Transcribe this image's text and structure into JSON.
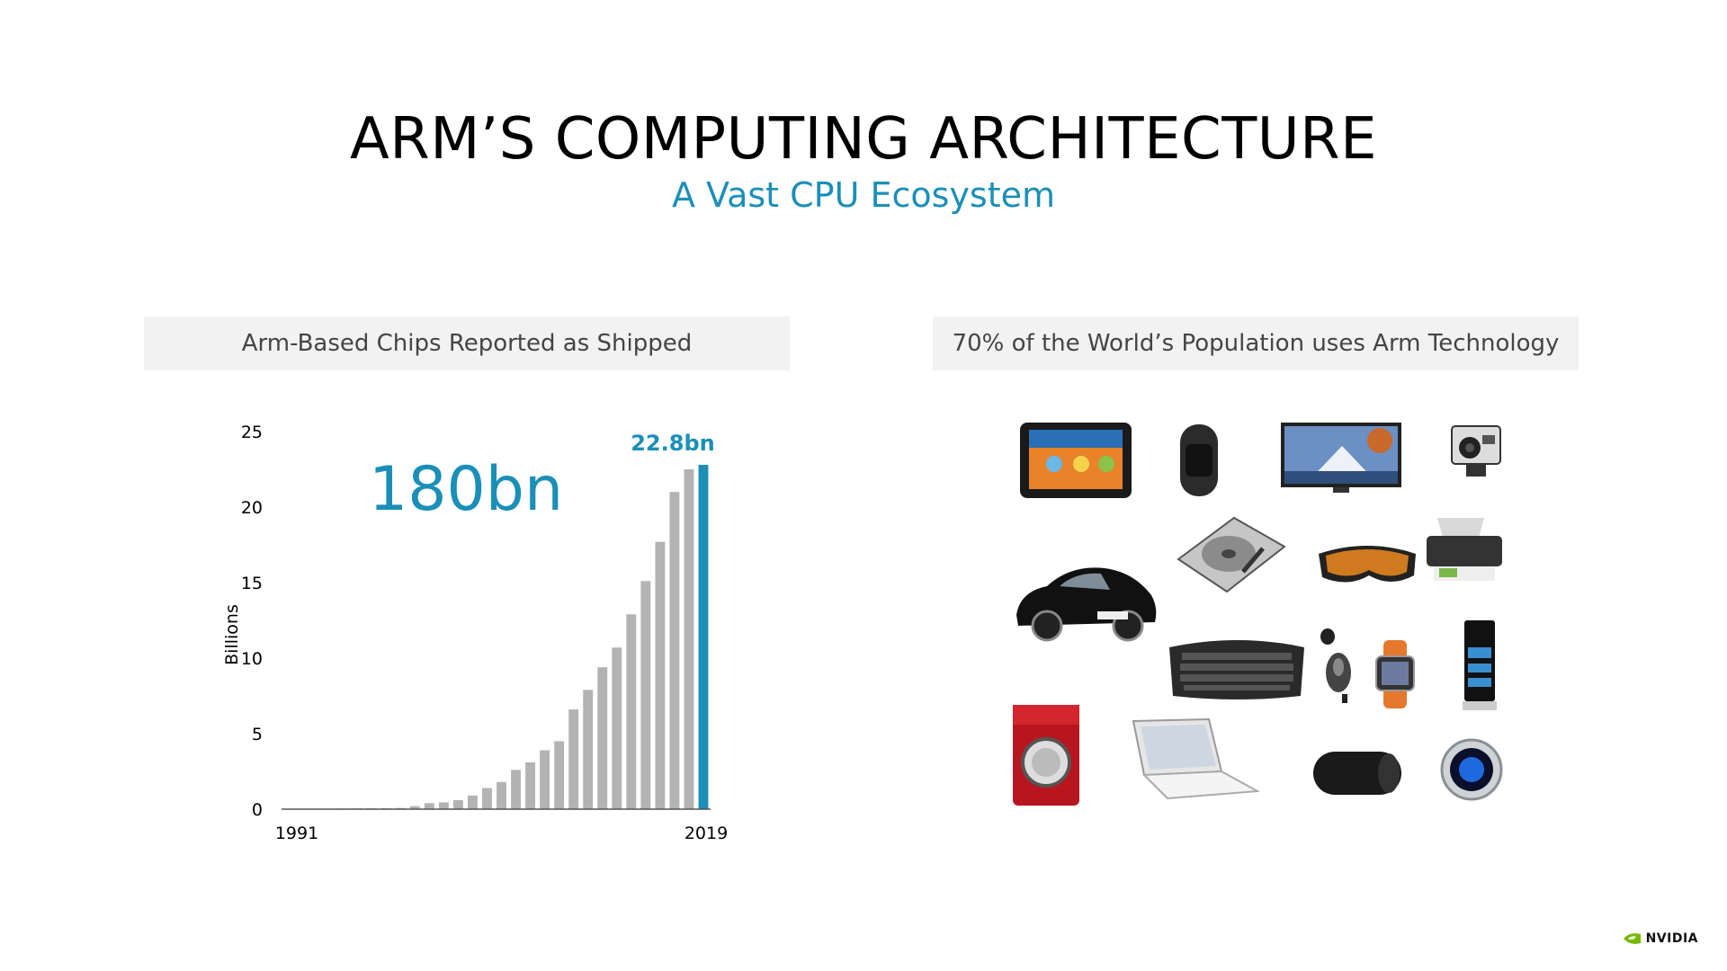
{
  "slide": {
    "title": "ARM’S COMPUTING ARCHITECTURE",
    "subtitle": "A Vast CPU Ecosystem",
    "left_panel": {
      "header": "Arm-Based Chips Reported as Shipped"
    },
    "right_panel": {
      "header": "70% of the World’s Population uses Arm Technology",
      "devices": [
        "tablet",
        "fitness-band",
        "television",
        "action-camera",
        "printer",
        "sports-car",
        "hard-drive",
        "ski-goggles",
        "keyboard",
        "mouse",
        "smartwatch",
        "weather-station",
        "washing-machine",
        "laptop",
        "portable-speaker",
        "thermostat"
      ]
    },
    "logo": "NVIDIA",
    "colors": {
      "accent": "#1b8fb8",
      "bar": "#b3b3b3",
      "header_bg": "#f2f2f2"
    }
  },
  "chart_data": {
    "type": "bar",
    "ylabel": "Billions",
    "ylim": [
      0,
      25
    ],
    "yticks": [
      0,
      5,
      10,
      15,
      20,
      25
    ],
    "x_first_label": "1991",
    "x_last_label": "2019",
    "categories": [
      1991,
      1992,
      1993,
      1994,
      1995,
      1996,
      1997,
      1998,
      1999,
      2000,
      2001,
      2002,
      2003,
      2004,
      2005,
      2006,
      2007,
      2008,
      2009,
      2010,
      2011,
      2012,
      2013,
      2014,
      2015,
      2016,
      2017,
      2018,
      2019
    ],
    "values": [
      0.01,
      0.02,
      0.03,
      0.04,
      0.05,
      0.06,
      0.07,
      0.08,
      0.2,
      0.4,
      0.45,
      0.6,
      0.9,
      1.4,
      1.8,
      2.6,
      3.1,
      3.9,
      4.5,
      6.6,
      7.9,
      9.4,
      10.7,
      12.9,
      15.1,
      17.7,
      21.0,
      22.5,
      22.8
    ],
    "highlight_index": 28,
    "highlight_label": "22.8bn",
    "annotation": "180bn"
  }
}
